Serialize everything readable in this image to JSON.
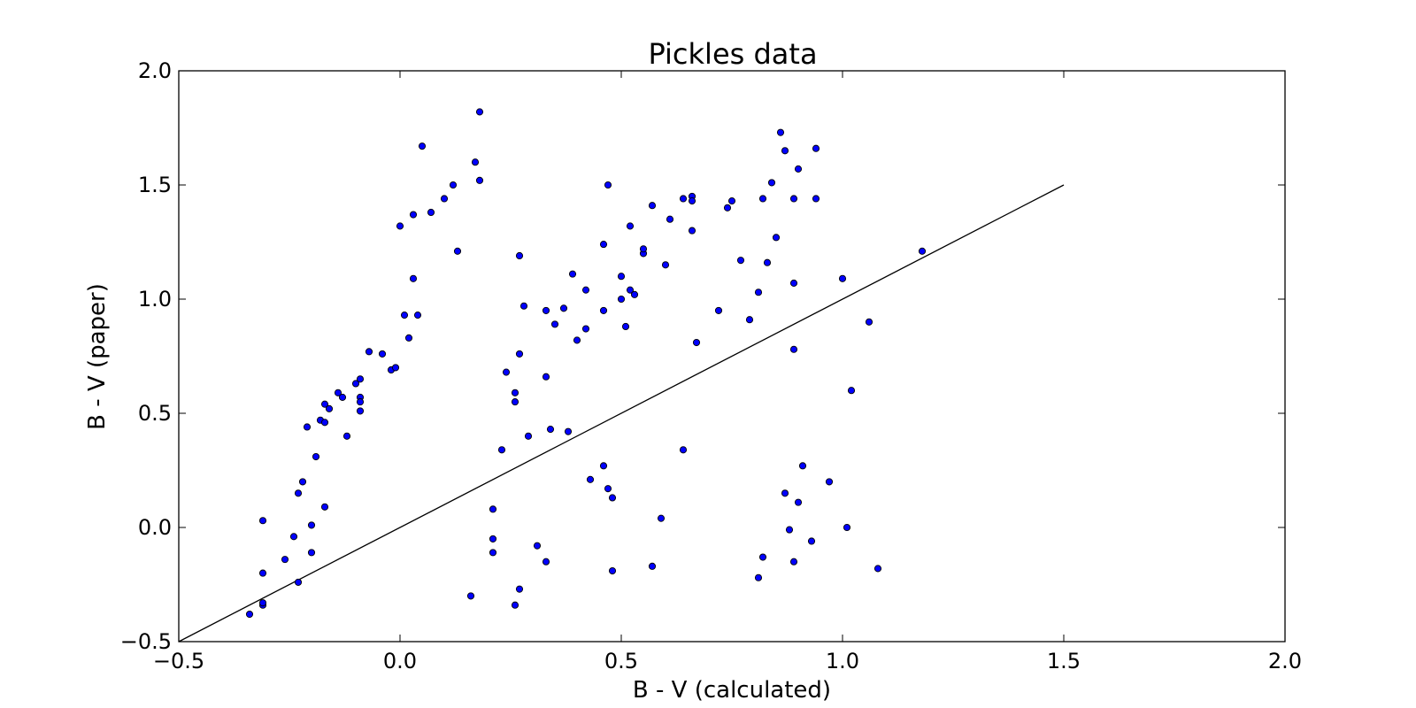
{
  "chart_data": {
    "type": "scatter",
    "title": "Pickles data",
    "xlabel": "B - V (calculated)",
    "ylabel": "B - V (paper)",
    "xlim": [
      -0.5,
      2.0
    ],
    "ylim": [
      -0.5,
      2.0
    ],
    "xticks": [
      -0.5,
      0.0,
      0.5,
      1.0,
      1.5,
      2.0
    ],
    "yticks": [
      -0.5,
      0.0,
      0.5,
      1.0,
      1.5,
      2.0
    ],
    "xtick_labels": [
      "−0.5",
      "0.0",
      "0.5",
      "1.0",
      "1.5",
      "2.0"
    ],
    "ytick_labels": [
      "−0.5",
      "0.0",
      "0.5",
      "1.0",
      "1.5",
      "2.0"
    ],
    "grid": false,
    "legend": "none",
    "marker_color": "#0000ff",
    "line_color": "#000000",
    "reference_line": {
      "x": [
        -0.5,
        1.5
      ],
      "y": [
        -0.5,
        1.5
      ]
    },
    "points": [
      [
        -0.34,
        -0.38
      ],
      [
        -0.31,
        -0.34
      ],
      [
        -0.31,
        -0.33
      ],
      [
        -0.31,
        -0.2
      ],
      [
        -0.31,
        0.03
      ],
      [
        -0.26,
        -0.14
      ],
      [
        -0.24,
        -0.04
      ],
      [
        -0.23,
        -0.24
      ],
      [
        -0.23,
        0.15
      ],
      [
        -0.22,
        0.2
      ],
      [
        -0.21,
        0.44
      ],
      [
        -0.2,
        -0.11
      ],
      [
        -0.2,
        0.01
      ],
      [
        -0.19,
        0.31
      ],
      [
        -0.18,
        0.47
      ],
      [
        -0.17,
        0.09
      ],
      [
        -0.17,
        0.46
      ],
      [
        -0.17,
        0.54
      ],
      [
        -0.16,
        0.52
      ],
      [
        -0.14,
        0.59
      ],
      [
        -0.13,
        0.57
      ],
      [
        -0.12,
        0.4
      ],
      [
        -0.1,
        0.63
      ],
      [
        -0.09,
        0.65
      ],
      [
        -0.09,
        0.57
      ],
      [
        -0.09,
        0.55
      ],
      [
        -0.09,
        0.51
      ],
      [
        -0.07,
        0.77
      ],
      [
        -0.04,
        0.76
      ],
      [
        -0.02,
        0.69
      ],
      [
        -0.01,
        0.7
      ],
      [
        0.0,
        1.32
      ],
      [
        0.01,
        0.93
      ],
      [
        0.02,
        0.83
      ],
      [
        0.03,
        1.37
      ],
      [
        0.03,
        1.09
      ],
      [
        0.04,
        0.93
      ],
      [
        0.05,
        1.67
      ],
      [
        0.07,
        1.38
      ],
      [
        0.1,
        1.44
      ],
      [
        0.12,
        1.5
      ],
      [
        0.13,
        1.21
      ],
      [
        0.16,
        -0.3
      ],
      [
        0.17,
        1.6
      ],
      [
        0.18,
        1.82
      ],
      [
        0.18,
        1.52
      ],
      [
        0.21,
        -0.05
      ],
      [
        0.21,
        -0.11
      ],
      [
        0.21,
        0.08
      ],
      [
        0.23,
        0.34
      ],
      [
        0.24,
        0.68
      ],
      [
        0.26,
        0.59
      ],
      [
        0.26,
        0.55
      ],
      [
        0.26,
        -0.34
      ],
      [
        0.27,
        -0.27
      ],
      [
        0.27,
        1.19
      ],
      [
        0.27,
        0.76
      ],
      [
        0.28,
        0.97
      ],
      [
        0.29,
        0.4
      ],
      [
        0.31,
        -0.08
      ],
      [
        0.33,
        -0.15
      ],
      [
        0.33,
        0.66
      ],
      [
        0.33,
        0.95
      ],
      [
        0.34,
        0.43
      ],
      [
        0.35,
        0.89
      ],
      [
        0.37,
        0.96
      ],
      [
        0.38,
        0.42
      ],
      [
        0.39,
        1.11
      ],
      [
        0.4,
        0.82
      ],
      [
        0.42,
        1.04
      ],
      [
        0.42,
        0.87
      ],
      [
        0.43,
        0.21
      ],
      [
        0.46,
        0.27
      ],
      [
        0.46,
        0.95
      ],
      [
        0.46,
        1.24
      ],
      [
        0.47,
        0.17
      ],
      [
        0.47,
        1.5
      ],
      [
        0.48,
        -0.19
      ],
      [
        0.48,
        0.13
      ],
      [
        0.5,
        1.1
      ],
      [
        0.5,
        1.0
      ],
      [
        0.51,
        0.88
      ],
      [
        0.52,
        1.04
      ],
      [
        0.52,
        1.32
      ],
      [
        0.53,
        1.02
      ],
      [
        0.55,
        1.2
      ],
      [
        0.55,
        1.22
      ],
      [
        0.57,
        -0.17
      ],
      [
        0.57,
        1.41
      ],
      [
        0.59,
        0.04
      ],
      [
        0.6,
        1.15
      ],
      [
        0.61,
        1.35
      ],
      [
        0.64,
        0.34
      ],
      [
        0.64,
        1.44
      ],
      [
        0.66,
        1.45
      ],
      [
        0.66,
        1.43
      ],
      [
        0.66,
        1.3
      ],
      [
        0.67,
        0.81
      ],
      [
        0.72,
        0.95
      ],
      [
        0.74,
        1.4
      ],
      [
        0.75,
        1.43
      ],
      [
        0.77,
        1.17
      ],
      [
        0.79,
        0.91
      ],
      [
        0.81,
        -0.22
      ],
      [
        0.81,
        1.03
      ],
      [
        0.82,
        -0.13
      ],
      [
        0.82,
        1.44
      ],
      [
        0.83,
        1.16
      ],
      [
        0.84,
        1.51
      ],
      [
        0.85,
        1.27
      ],
      [
        0.86,
        1.73
      ],
      [
        0.87,
        1.65
      ],
      [
        0.87,
        0.15
      ],
      [
        0.88,
        -0.01
      ],
      [
        0.89,
        -0.15
      ],
      [
        0.89,
        1.07
      ],
      [
        0.89,
        0.78
      ],
      [
        0.89,
        1.44
      ],
      [
        0.9,
        0.11
      ],
      [
        0.9,
        1.57
      ],
      [
        0.91,
        0.27
      ],
      [
        0.93,
        -0.06
      ],
      [
        0.94,
        1.66
      ],
      [
        0.94,
        1.44
      ],
      [
        0.97,
        0.2
      ],
      [
        1.0,
        1.09
      ],
      [
        1.01,
        0.0
      ],
      [
        1.02,
        0.6
      ],
      [
        1.06,
        0.9
      ],
      [
        1.08,
        -0.18
      ],
      [
        1.18,
        1.21
      ]
    ]
  }
}
